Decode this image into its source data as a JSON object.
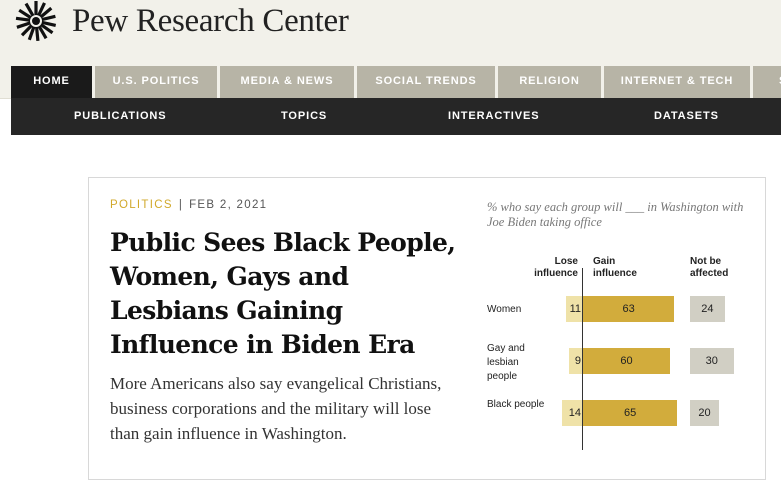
{
  "site": {
    "logo_text": "Pew Research Center",
    "logo_icon": "sunburst-logo-icon"
  },
  "primary_nav": [
    {
      "label": "HOME",
      "active": true
    },
    {
      "label": "U.S. POLITICS"
    },
    {
      "label": "MEDIA & NEWS"
    },
    {
      "label": "SOCIAL TRENDS"
    },
    {
      "label": "RELIGION"
    },
    {
      "label": "INTERNET & TECH"
    },
    {
      "label": "S"
    }
  ],
  "secondary_nav": [
    {
      "label": "PUBLICATIONS"
    },
    {
      "label": "TOPICS"
    },
    {
      "label": "INTERACTIVES"
    },
    {
      "label": "DATASETS"
    }
  ],
  "article": {
    "category": "POLITICS",
    "separator": "|",
    "date": "FEB 2, 2021",
    "headline": "Public Sees Black People, Women, Gays and Lesbians Gaining Influence in Biden Era",
    "dek": "More Americans also say evangelical Christians, business corporations and the military will lose than gain influence in Washington."
  },
  "chart_data": {
    "type": "bar",
    "subtitle": "% who say each group will ___ in Washington with Joe Biden taking office",
    "headers": {
      "lose": "Lose influence",
      "gain": "Gain influence",
      "not_affected": "Not be affected"
    },
    "categories": [
      "Women",
      "Gay and lesbian people",
      "Black people"
    ],
    "series": [
      {
        "name": "Lose influence",
        "values": [
          11,
          9,
          14
        ]
      },
      {
        "name": "Gain influence",
        "values": [
          63,
          60,
          65
        ]
      },
      {
        "name": "Not be affected",
        "values": [
          24,
          30,
          20
        ]
      }
    ],
    "labels": {
      "lose": [
        "11",
        "9",
        "14"
      ],
      "gain": [
        "63",
        "60",
        "65"
      ],
      "not_affected": [
        "24",
        "30",
        "20"
      ]
    },
    "colors": {
      "lose": "#efe2a8",
      "gain": "#d2ac3c",
      "not_affected": "#d1cfc4",
      "category": "#d1a92c"
    }
  }
}
